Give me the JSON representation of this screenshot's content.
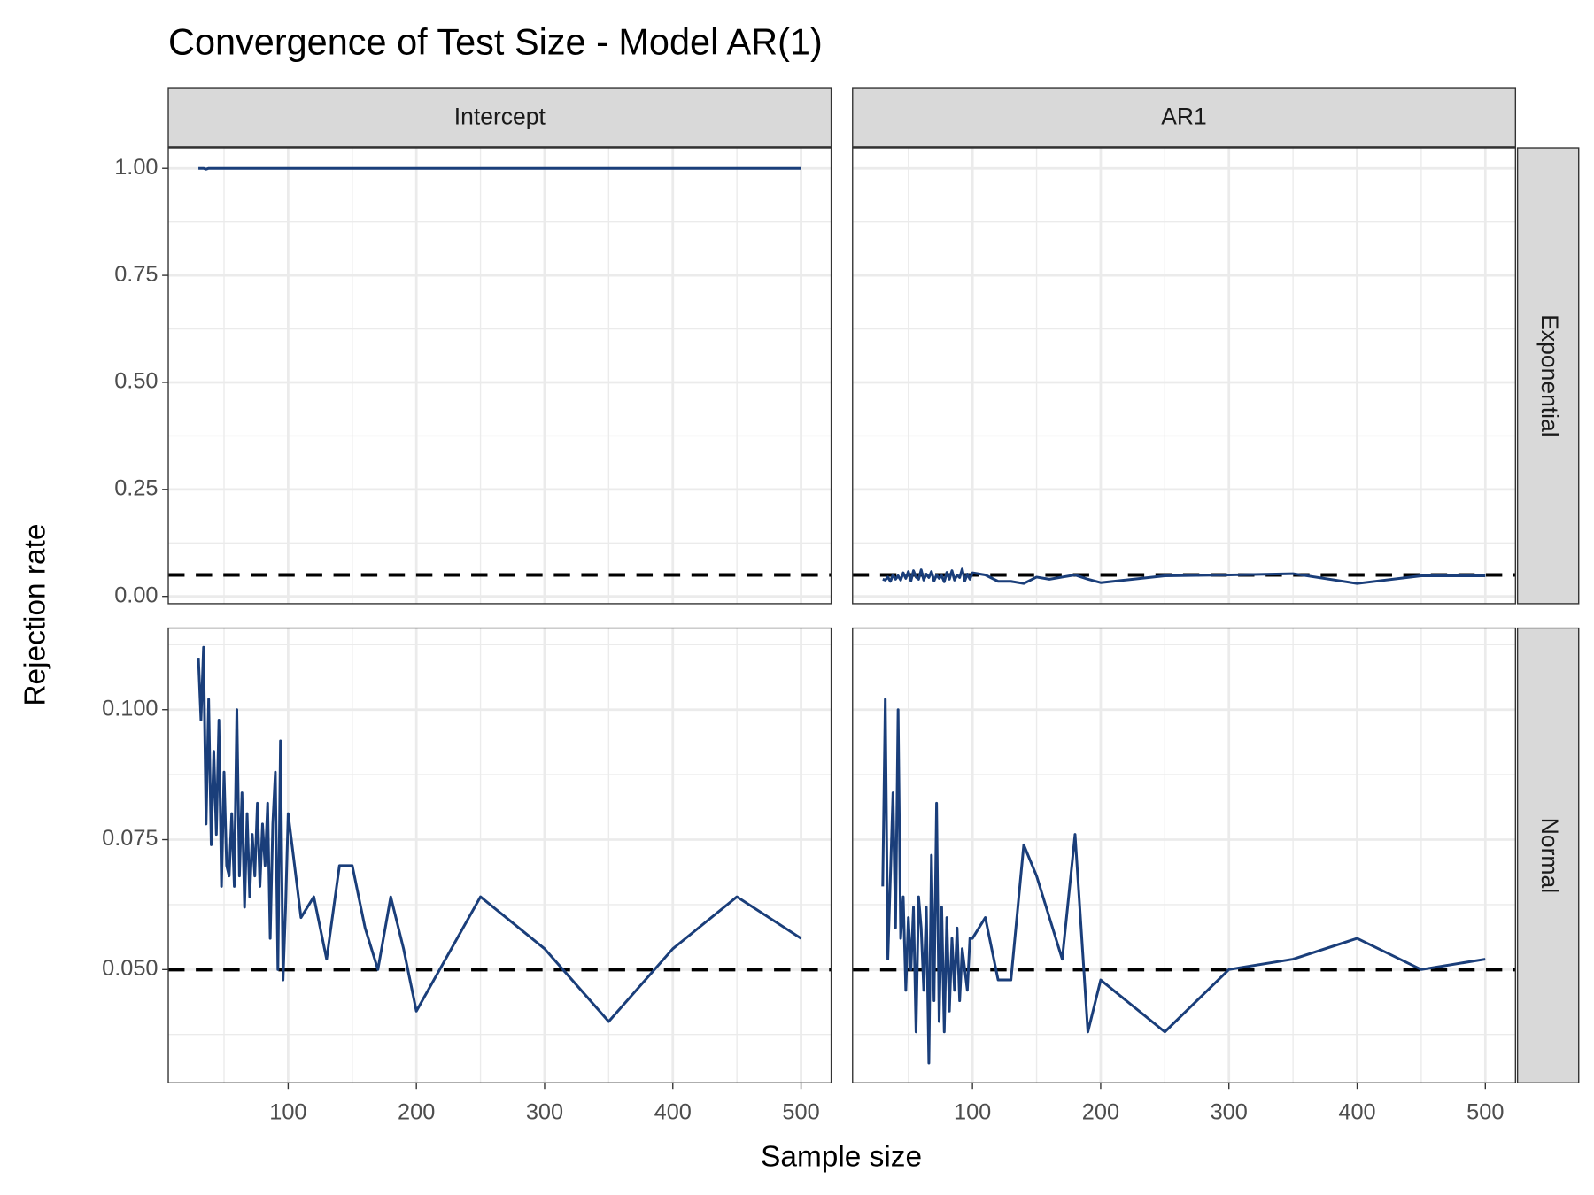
{
  "chart_data": {
    "type": "line",
    "title": "Convergence of Test Size - Model AR(1)",
    "x_label": "Sample size",
    "y_label": "Rejection rate",
    "color": "#1a3e7a",
    "reference_line": 0.05,
    "grid": true,
    "x": [
      30,
      32,
      34,
      36,
      38,
      40,
      42,
      44,
      46,
      48,
      50,
      52,
      54,
      56,
      58,
      60,
      62,
      64,
      66,
      68,
      70,
      72,
      74,
      76,
      78,
      80,
      82,
      84,
      86,
      88,
      90,
      92,
      94,
      96,
      98,
      100,
      110,
      120,
      130,
      140,
      150,
      160,
      170,
      180,
      190,
      200,
      250,
      300,
      350,
      400,
      450,
      500
    ],
    "xlim": [
      6.5,
      523.5
    ],
    "xticks": [
      100,
      200,
      300,
      400,
      500
    ],
    "x_minor_ticks": [
      50,
      150,
      250,
      350,
      450
    ],
    "columns": [
      "Intercept",
      "AR1"
    ],
    "rows": [
      {
        "label": "Exponential",
        "ylim": [
          -0.017,
          1.048
        ],
        "yticks": [
          {
            "value": 0,
            "label": "0.00"
          },
          {
            "value": 0.25,
            "label": "0.25"
          },
          {
            "value": 0.5,
            "label": "0.50"
          },
          {
            "value": 0.75,
            "label": "0.75"
          },
          {
            "value": 1,
            "label": "1.00"
          }
        ],
        "y_minor_ticks": [
          0.125,
          0.375,
          0.625,
          0.875
        ],
        "panels": [
          {
            "values": [
              1,
              1,
              1,
              0.998,
              1,
              1,
              1,
              1,
              1,
              1,
              1,
              1,
              1,
              1,
              1,
              1,
              1,
              1,
              1,
              1,
              1,
              1,
              1,
              1,
              1,
              1,
              1,
              1,
              1,
              1,
              1,
              1,
              1,
              1,
              1,
              1,
              1,
              1,
              1,
              1,
              1,
              1,
              1,
              1,
              1,
              1,
              1,
              1,
              1,
              1,
              1,
              1
            ]
          },
          {
            "values": [
              0.04,
              0.038,
              0.045,
              0.035,
              0.05,
              0.04,
              0.048,
              0.038,
              0.055,
              0.042,
              0.058,
              0.036,
              0.06,
              0.045,
              0.04,
              0.062,
              0.038,
              0.052,
              0.044,
              0.058,
              0.036,
              0.05,
              0.042,
              0.048,
              0.034,
              0.056,
              0.04,
              0.06,
              0.038,
              0.05,
              0.044,
              0.064,
              0.036,
              0.052,
              0.04,
              0.055,
              0.05,
              0.035,
              0.035,
              0.03,
              0.045,
              0.04,
              0.045,
              0.05,
              0.04,
              0.032,
              0.048,
              0.05,
              0.053,
              0.03,
              0.048,
              0.048
            ]
          }
        ]
      },
      {
        "label": "Normal",
        "ylim": [
          0.0282,
          0.1157
        ],
        "yticks": [
          {
            "value": 0.05,
            "label": "0.050"
          },
          {
            "value": 0.075,
            "label": "0.075"
          },
          {
            "value": 0.1,
            "label": "0.100"
          }
        ],
        "y_minor_ticks": [
          0.0375,
          0.0625,
          0.0875,
          0.1125
        ],
        "panels": [
          {
            "values": [
              0.11,
              0.098,
              0.112,
              0.078,
              0.102,
              0.074,
              0.092,
              0.076,
              0.098,
              0.066,
              0.088,
              0.07,
              0.068,
              0.08,
              0.066,
              0.1,
              0.068,
              0.084,
              0.062,
              0.08,
              0.064,
              0.076,
              0.068,
              0.082,
              0.066,
              0.078,
              0.07,
              0.082,
              0.056,
              0.078,
              0.088,
              0.05,
              0.094,
              0.048,
              0.062,
              0.08,
              0.06,
              0.064,
              0.052,
              0.07,
              0.07,
              0.058,
              0.05,
              0.064,
              0.054,
              0.042,
              0.064,
              0.054,
              0.04,
              0.054,
              0.064,
              0.056
            ]
          },
          {
            "values": [
              0.066,
              0.102,
              0.052,
              0.068,
              0.084,
              0.058,
              0.1,
              0.056,
              0.064,
              0.046,
              0.06,
              0.05,
              0.062,
              0.038,
              0.064,
              0.058,
              0.046,
              0.062,
              0.032,
              0.072,
              0.044,
              0.082,
              0.04,
              0.062,
              0.038,
              0.06,
              0.042,
              0.056,
              0.046,
              0.058,
              0.044,
              0.054,
              0.05,
              0.046,
              0.056,
              0.056,
              0.06,
              0.048,
              0.048,
              0.074,
              0.068,
              0.06,
              0.052,
              0.076,
              0.038,
              0.048,
              0.038,
              0.05,
              0.052,
              0.056,
              0.05,
              0.052
            ]
          }
        ]
      }
    ]
  }
}
